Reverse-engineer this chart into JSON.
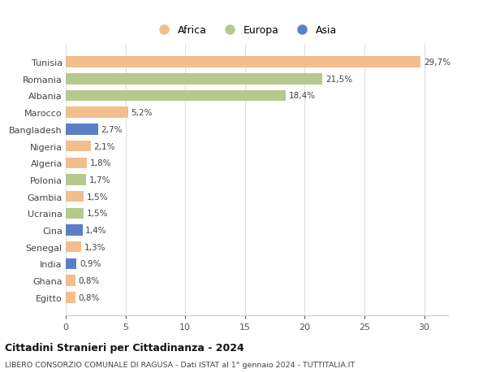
{
  "categories": [
    "Tunisia",
    "Romania",
    "Albania",
    "Marocco",
    "Bangladesh",
    "Nigeria",
    "Algeria",
    "Polonia",
    "Gambia",
    "Ucraina",
    "Cina",
    "Senegal",
    "India",
    "Ghana",
    "Egitto"
  ],
  "values": [
    29.7,
    21.5,
    18.4,
    5.2,
    2.7,
    2.1,
    1.8,
    1.7,
    1.5,
    1.5,
    1.4,
    1.3,
    0.9,
    0.8,
    0.8
  ],
  "labels": [
    "29,7%",
    "21,5%",
    "18,4%",
    "5,2%",
    "2,7%",
    "2,1%",
    "1,8%",
    "1,7%",
    "1,5%",
    "1,5%",
    "1,4%",
    "1,3%",
    "0,9%",
    "0,8%",
    "0,8%"
  ],
  "continents": [
    "Africa",
    "Europa",
    "Europa",
    "Africa",
    "Asia",
    "Africa",
    "Africa",
    "Europa",
    "Africa",
    "Europa",
    "Asia",
    "Africa",
    "Asia",
    "Africa",
    "Africa"
  ],
  "colors": {
    "Africa": "#F2BE8D",
    "Europa": "#B5C98E",
    "Asia": "#5B7EC5"
  },
  "xlim": [
    0,
    32
  ],
  "xticks": [
    0,
    5,
    10,
    15,
    20,
    25,
    30
  ],
  "title": "Cittadini Stranieri per Cittadinanza - 2024",
  "subtitle": "LIBERO CONSORZIO COMUNALE DI RAGUSA - Dati ISTAT al 1° gennaio 2024 - TUTTITALIA.IT",
  "background_color": "#ffffff",
  "grid_color": "#e0e0e0",
  "bar_height": 0.65
}
